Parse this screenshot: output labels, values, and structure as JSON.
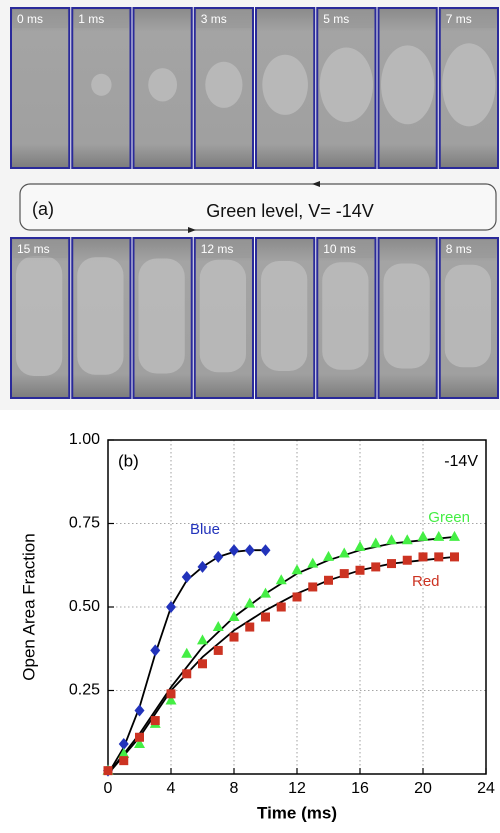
{
  "panel_a": {
    "label": "(a)",
    "caption": "Green level, V= -14V",
    "top_frames": [
      "0 ms",
      "1 ms",
      null,
      "3 ms",
      null,
      "5 ms",
      null,
      "7 ms"
    ],
    "bottom_frames": [
      "15 ms",
      null,
      null,
      "12 ms",
      null,
      "10 ms",
      null,
      "8 ms"
    ]
  },
  "chart_data": {
    "type": "scatter",
    "label": "(b)",
    "annotation": "-14V",
    "x_label": "Time (ms)",
    "y_label": "Open Area Fraction",
    "xlim": [
      0,
      24
    ],
    "xticks": [
      0,
      4,
      8,
      12,
      16,
      20,
      24
    ],
    "ylim": [
      0,
      1
    ],
    "yticks": [
      0.25,
      {
        "value": 0.5,
        "label": "0.50"
      },
      0.75,
      {
        "value": 1,
        "label": "1.00"
      }
    ],
    "grid": true,
    "series": [
      {
        "name": "Blue",
        "color": "#2233bb",
        "marker": "diamond",
        "x": [
          0,
          1,
          2,
          3,
          4,
          5,
          6,
          7,
          8,
          9,
          10
        ],
        "values": [
          0.01,
          0.09,
          0.19,
          0.37,
          0.5,
          0.59,
          0.62,
          0.65,
          0.67,
          0.67,
          0.67
        ]
      },
      {
        "name": "Green",
        "color": "#44ee44",
        "marker": "triangle",
        "x": [
          0,
          1,
          2,
          3,
          4,
          5,
          6,
          7,
          8,
          9,
          10,
          11,
          12,
          13,
          14,
          15,
          16,
          17,
          18,
          19,
          20,
          21,
          22
        ],
        "values": [
          0.01,
          0.06,
          0.09,
          0.15,
          0.22,
          0.36,
          0.4,
          0.44,
          0.47,
          0.51,
          0.54,
          0.58,
          0.61,
          0.63,
          0.65,
          0.66,
          0.68,
          0.69,
          0.7,
          0.7,
          0.71,
          0.71,
          0.71
        ]
      },
      {
        "name": "Red",
        "color": "#cc3322",
        "marker": "square",
        "x": [
          0,
          1,
          2,
          3,
          4,
          5,
          6,
          7,
          8,
          9,
          10,
          11,
          12,
          13,
          14,
          15,
          16,
          17,
          18,
          19,
          20,
          21,
          22
        ],
        "values": [
          0.01,
          0.04,
          0.11,
          0.16,
          0.24,
          0.3,
          0.33,
          0.37,
          0.41,
          0.44,
          0.47,
          0.5,
          0.53,
          0.56,
          0.58,
          0.6,
          0.61,
          0.62,
          0.63,
          0.64,
          0.65,
          0.65,
          0.65
        ]
      }
    ],
    "fit_lines": [
      {
        "color": "#000000",
        "x": [
          0,
          1,
          2,
          3,
          4,
          5,
          6,
          7,
          8,
          9,
          10
        ],
        "values": [
          0,
          0.08,
          0.2,
          0.36,
          0.5,
          0.58,
          0.62,
          0.65,
          0.665,
          0.67,
          0.67
        ]
      },
      {
        "color": "#000000",
        "x": [
          0,
          2,
          4,
          6,
          8,
          10,
          12,
          14,
          16,
          18,
          20,
          22
        ],
        "values": [
          0,
          0.12,
          0.26,
          0.38,
          0.47,
          0.54,
          0.6,
          0.64,
          0.67,
          0.69,
          0.7,
          0.71
        ]
      },
      {
        "color": "#000000",
        "x": [
          0,
          2,
          4,
          6,
          8,
          10,
          12,
          14,
          16,
          18,
          20,
          22
        ],
        "values": [
          0,
          0.11,
          0.25,
          0.35,
          0.43,
          0.49,
          0.54,
          0.58,
          0.61,
          0.63,
          0.64,
          0.65
        ]
      }
    ]
  }
}
